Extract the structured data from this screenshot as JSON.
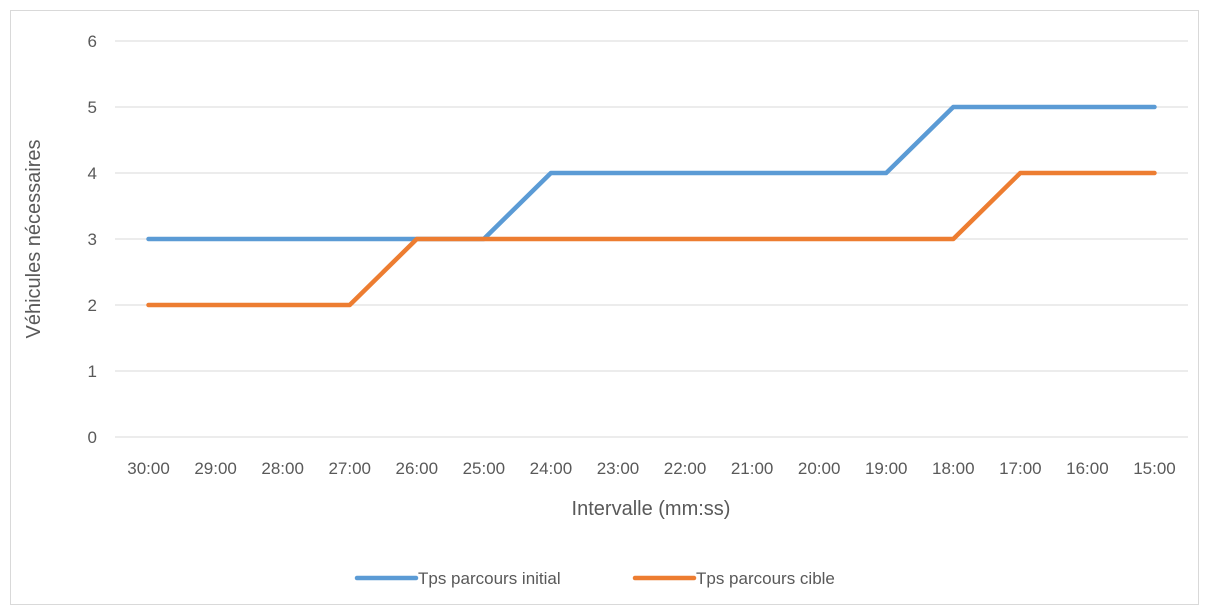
{
  "chart_data": {
    "type": "line",
    "title": "",
    "xlabel": "Intervalle (mm:ss)",
    "ylabel": "Véhicules nécessaires",
    "ylim": [
      0,
      6
    ],
    "yticks": [
      "0",
      "1",
      "2",
      "3",
      "4",
      "5",
      "6"
    ],
    "grid": true,
    "legend_position": "bottom",
    "categories": [
      "30:00",
      "29:00",
      "28:00",
      "27:00",
      "26:00",
      "25:00",
      "24:00",
      "23:00",
      "22:00",
      "21:00",
      "20:00",
      "19:00",
      "18:00",
      "17:00",
      "16:00",
      "15:00"
    ],
    "series": [
      {
        "name": "Tps parcours initial",
        "color": "#5B9BD5",
        "values": [
          3,
          3,
          3,
          3,
          3,
          3,
          4,
          4,
          4,
          4,
          4,
          4,
          5,
          5,
          5,
          5
        ]
      },
      {
        "name": "Tps parcours cible",
        "color": "#ED7D31",
        "values": [
          2,
          2,
          2,
          2,
          3,
          3,
          3,
          3,
          3,
          3,
          3,
          3,
          3,
          4,
          4,
          4
        ]
      }
    ]
  }
}
